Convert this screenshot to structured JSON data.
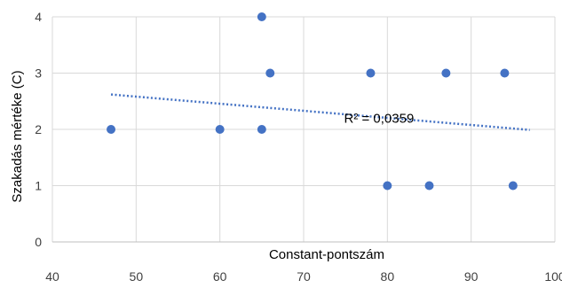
{
  "chart_data": {
    "type": "scatter",
    "title": "",
    "xlabel": "Constant-pontszám",
    "ylabel": "Szakadás mértéke (C)",
    "xlim": [
      40,
      100
    ],
    "ylim": [
      0,
      4
    ],
    "xticks": [
      "40",
      "50",
      "60",
      "70",
      "80",
      "90",
      "100"
    ],
    "yticks": [
      "0",
      "1",
      "2",
      "3",
      "4"
    ],
    "grid": true,
    "legend": "none",
    "series": [
      {
        "color": "#4472C4",
        "points": [
          {
            "x": 47,
            "y": 2
          },
          {
            "x": 60,
            "y": 2
          },
          {
            "x": 65,
            "y": 2
          },
          {
            "x": 65,
            "y": 4
          },
          {
            "x": 66,
            "y": 3
          },
          {
            "x": 78,
            "y": 3
          },
          {
            "x": 80,
            "y": 1
          },
          {
            "x": 85,
            "y": 1
          },
          {
            "x": 87,
            "y": 3
          },
          {
            "x": 94,
            "y": 3
          },
          {
            "x": 95,
            "y": 1
          }
        ]
      }
    ],
    "trendline": {
      "type": "linear",
      "style": "dotted",
      "color": "#4472C4",
      "x_range": [
        47,
        97
      ],
      "y_values": [
        2.62,
        1.99
      ]
    },
    "annotations": [
      {
        "text": "R² = 0,0359",
        "x": 79,
        "y": 2.12
      }
    ]
  }
}
